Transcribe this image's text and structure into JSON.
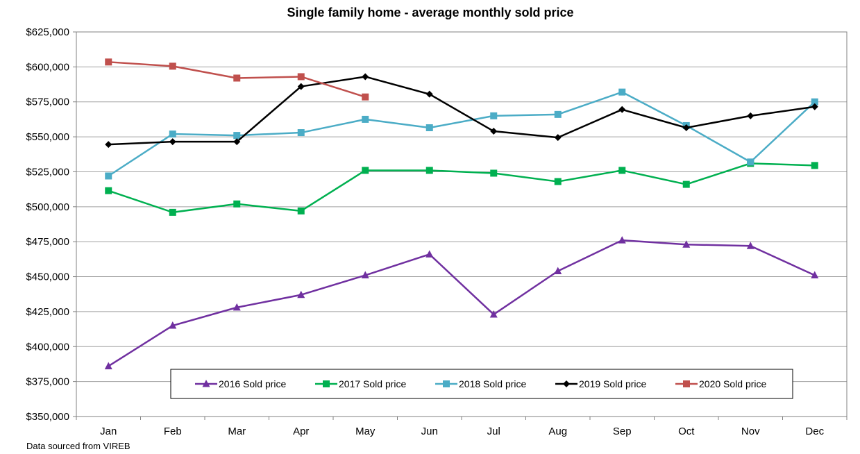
{
  "chart_data": {
    "type": "line",
    "title": "Single family home - average monthly sold price",
    "xlabel": "",
    "ylabel": "",
    "categories": [
      "Jan",
      "Feb",
      "Mar",
      "Apr",
      "May",
      "Jun",
      "Jul",
      "Aug",
      "Sep",
      "Oct",
      "Nov",
      "Dec"
    ],
    "ylim": [
      350000,
      625000
    ],
    "yticks": [
      350000,
      375000,
      400000,
      425000,
      450000,
      475000,
      500000,
      525000,
      550000,
      575000,
      600000,
      625000
    ],
    "ytick_labels": [
      "$350,000",
      "$375,000",
      "$400,000",
      "$425,000",
      "$450,000",
      "$475,000",
      "$500,000",
      "$525,000",
      "$550,000",
      "$575,000",
      "$600,000",
      "$625,000"
    ],
    "grid": true,
    "legend_position": "bottom-inside",
    "series": [
      {
        "name": "2016 Sold price",
        "color": "#7030a0",
        "marker": "triangle",
        "values": [
          386000,
          415000,
          428000,
          437000,
          451000,
          466000,
          423000,
          454000,
          476000,
          473000,
          472000,
          451000
        ]
      },
      {
        "name": "2017 Sold price",
        "color": "#00b050",
        "marker": "square",
        "values": [
          511500,
          496000,
          502000,
          497000,
          526000,
          526000,
          524000,
          518000,
          526000,
          516000,
          531000,
          529500
        ]
      },
      {
        "name": "2018 Sold price",
        "color": "#4bacc6",
        "marker": "square",
        "values": [
          522000,
          552000,
          551000,
          553000,
          562500,
          556500,
          565000,
          566000,
          582000,
          558000,
          532000,
          575000
        ]
      },
      {
        "name": "2019 Sold price",
        "color": "#000000",
        "marker": "diamond",
        "values": [
          544500,
          546500,
          546500,
          586000,
          593000,
          580500,
          554000,
          549500,
          569500,
          556500,
          565000,
          571500
        ]
      },
      {
        "name": "2020 Sold price",
        "color": "#c0504d",
        "marker": "square",
        "values": [
          603500,
          600500,
          592000,
          593000,
          578500,
          null,
          null,
          null,
          null,
          null,
          null,
          null
        ]
      }
    ]
  },
  "footer": {
    "source_text": "Data sourced from VIREB"
  }
}
